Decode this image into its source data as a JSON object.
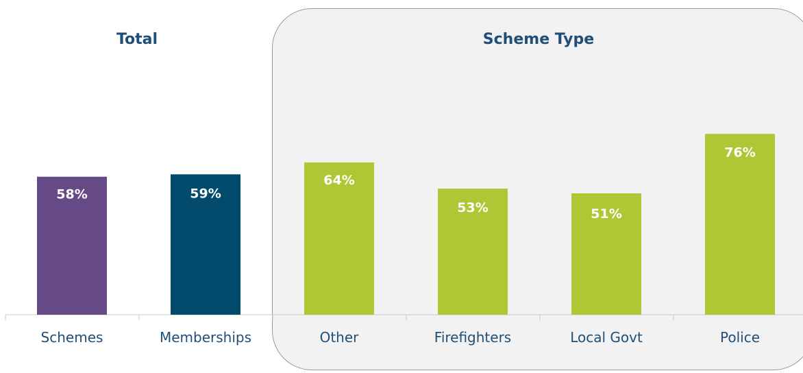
{
  "chart_data": {
    "type": "bar",
    "groups": [
      {
        "title": "Total",
        "categories": [
          "Schemes",
          "Memberships"
        ]
      },
      {
        "title": "Scheme Type",
        "categories": [
          "Other",
          "Firefighters",
          "Local Govt",
          "Police"
        ]
      }
    ],
    "categories": [
      "Schemes",
      "Memberships",
      "Other",
      "Firefighters",
      "Local Govt",
      "Police"
    ],
    "values": [
      58,
      59,
      64,
      53,
      51,
      76
    ],
    "value_labels": [
      "58%",
      "59%",
      "64%",
      "53%",
      "51%",
      "76%"
    ],
    "unit": "%",
    "ylim": [
      0,
      100
    ],
    "grid": false,
    "colors": [
      "#654a87",
      "#024b6d",
      "#b1c634",
      "#b1c634",
      "#b1c634",
      "#b1c634"
    ],
    "title_color": "#1f4e79"
  }
}
